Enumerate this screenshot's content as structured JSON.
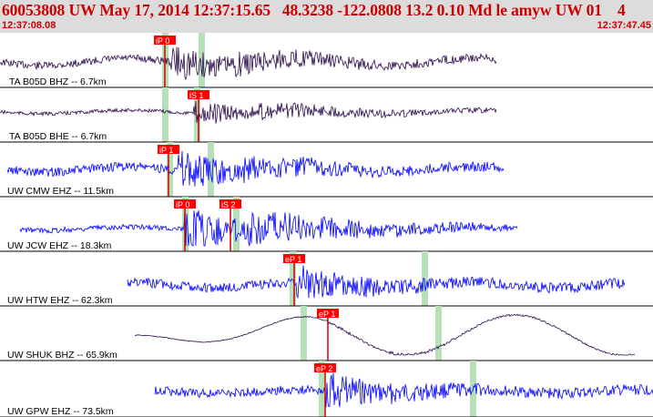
{
  "header": {
    "title": "60053808 UW May 17, 2014 12:37:15.65   48.3238 -122.0808 13.2 0.10 Md le amyw UW 01    4",
    "time_start": "12:37:08.08",
    "time_end": "12:37:47.45"
  },
  "colors": {
    "header_bg": "#dcdcdc",
    "header_text": "#cc0000",
    "pick_box": "#ff0000",
    "pick_text": "#ffffff",
    "trace_dark": "#2a0a4a",
    "trace_blue": "#0000ff",
    "highlight": "#b8e0b8"
  },
  "channels": [
    {
      "label": "TA B05D BHZ -- 6.7km",
      "color": "dark",
      "pick": "iP 0"
    },
    {
      "label": "TA B05D BHE -- 6.7km",
      "color": "dark",
      "pick": "iS 1"
    },
    {
      "label": "UW CMW EHZ -- 11.5km",
      "color": "blue",
      "pick": "iP 1"
    },
    {
      "label": "UW JCW EHZ -- 18.3km",
      "color": "blue",
      "pick": "iP 0",
      "pick2": "iS 2"
    },
    {
      "label": "UW HTW EHZ -- 62.3km",
      "color": "blue",
      "pick": "eP 1"
    },
    {
      "label": "UW SHUK BHZ -- 65.9km",
      "color": "dark",
      "pick": "eP 1"
    },
    {
      "label": "UW GPW EHZ -- 73.5km",
      "color": "blue",
      "pick": "eP 2"
    }
  ]
}
